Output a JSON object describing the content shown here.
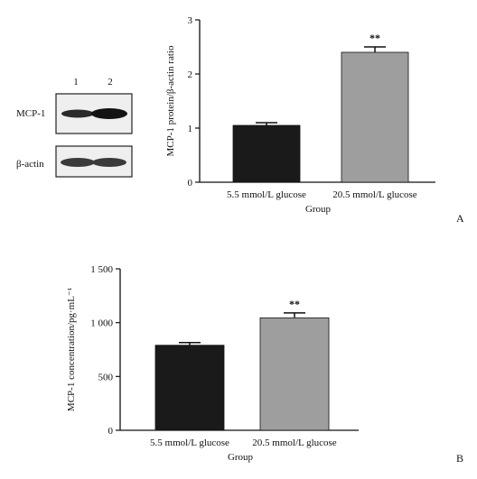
{
  "western_blot": {
    "lane_labels": [
      "1",
      "2"
    ],
    "rows": [
      "MCP-1",
      "β-actin"
    ],
    "colors": {
      "band": "#1e1e1e",
      "frame": "#222222",
      "background": "#efefef"
    }
  },
  "chart_data": [
    {
      "type": "bar",
      "panel": "A",
      "categories": [
        "5.5 mmol/L glucose",
        "20.5 mmol/L glucose"
      ],
      "values": [
        1.05,
        2.4
      ],
      "errors": [
        0.05,
        0.1
      ],
      "significance": [
        "",
        "**"
      ],
      "bar_colors": [
        "#1a1a1a",
        "#9e9e9e"
      ],
      "xlabel": "Group",
      "ylabel": "MCP-1 protein/β-actin ratio",
      "ylim": [
        0,
        3
      ],
      "yticks": [
        0,
        1,
        2,
        3
      ],
      "ytick_labels": [
        "0",
        "1",
        "2",
        "3"
      ],
      "grid": false,
      "legend": "none"
    },
    {
      "type": "bar",
      "panel": "B",
      "categories": [
        "5.5 mmol/L glucose",
        "20.5 mmol/L glucose"
      ],
      "values": [
        790,
        1045
      ],
      "errors": [
        25,
        45
      ],
      "significance": [
        "",
        "**"
      ],
      "bar_colors": [
        "#1a1a1a",
        "#9e9e9e"
      ],
      "xlabel": "Group",
      "ylabel": "MCP-1 concentration/pg·mL⁻¹",
      "ylim": [
        0,
        1500
      ],
      "yticks": [
        0,
        500,
        1000,
        1500
      ],
      "ytick_labels": [
        "0",
        "500",
        "1 000",
        "1 500"
      ],
      "grid": false,
      "legend": "none"
    }
  ]
}
